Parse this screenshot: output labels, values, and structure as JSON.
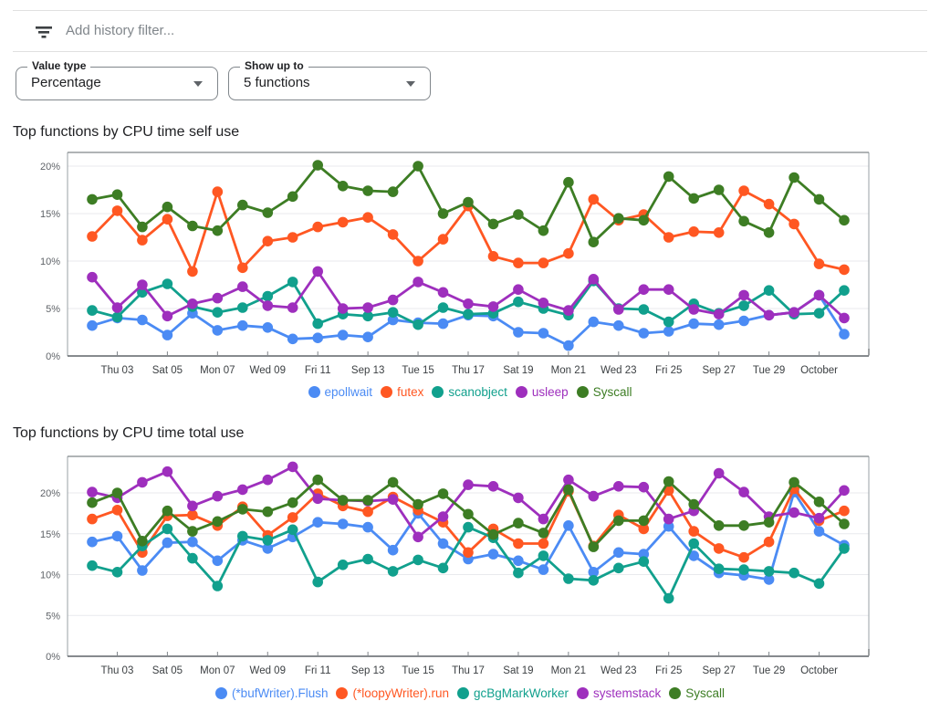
{
  "filter_bar": {
    "placeholder": "Add history filter...",
    "icon": "filter-list"
  },
  "controls": [
    {
      "label": "Value type",
      "value": "Percentage"
    },
    {
      "label": "Show up to",
      "value": "5 functions"
    }
  ],
  "axis": {
    "y_tick_labels": [
      "0%",
      "5%",
      "10%",
      "15%",
      "20%"
    ],
    "x_labels": [
      "Thu 03",
      "Sat 05",
      "Mon 07",
      "Wed 09",
      "Fri 11",
      "Sep 13",
      "Tue 15",
      "Thu 17",
      "Sat 19",
      "Mon 21",
      "Wed 23",
      "Fri 25",
      "Sep 27",
      "Tue 29",
      "October"
    ]
  },
  "chart_data": [
    {
      "type": "line",
      "title": "Top functions by CPU time self use",
      "xlabel": "",
      "ylabel": "CPU time self use (%)",
      "ylim": [
        0,
        21.5
      ],
      "y_ticks": [
        0,
        5,
        10,
        15,
        20
      ],
      "grid": true,
      "legend_position": "bottom",
      "x_labels": [
        "Thu 03",
        "Sat 05",
        "Mon 07",
        "Wed 09",
        "Fri 11",
        "Sep 13",
        "Tue 15",
        "Thu 17",
        "Sat 19",
        "Mon 21",
        "Wed 23",
        "Fri 25",
        "Sep 27",
        "Tue 29",
        "October"
      ],
      "series": [
        {
          "name": "epollwait",
          "color": "#4b8bf4",
          "values": [
            3.2,
            4.0,
            3.8,
            2.2,
            4.5,
            2.7,
            3.2,
            3.0,
            1.8,
            1.9,
            2.2,
            2.0,
            3.8,
            3.5,
            3.4,
            4.3,
            4.2,
            2.5,
            2.4,
            1.1,
            3.6,
            3.2,
            2.4,
            2.6,
            3.4,
            3.3,
            3.7,
            4.3,
            4.6,
            6.4,
            2.3
          ]
        },
        {
          "name": "futex",
          "color": "#ff5722",
          "values": [
            12.6,
            15.3,
            12.2,
            14.4,
            8.9,
            17.3,
            9.3,
            12.1,
            12.5,
            13.6,
            14.1,
            14.6,
            12.8,
            10.0,
            12.3,
            15.8,
            10.5,
            9.8,
            9.8,
            10.8,
            16.5,
            14.3,
            14.9,
            12.5,
            13.1,
            13.0,
            17.4,
            16.0,
            13.9,
            9.7,
            9.1
          ]
        },
        {
          "name": "scanobject",
          "color": "#11a08d",
          "values": [
            4.8,
            4.1,
            6.7,
            7.6,
            5.2,
            4.6,
            5.1,
            6.3,
            7.8,
            3.4,
            4.4,
            4.2,
            4.6,
            3.3,
            5.1,
            4.4,
            4.5,
            5.7,
            5.0,
            4.3,
            7.9,
            5.0,
            4.9,
            3.6,
            5.5,
            4.5,
            5.3,
            6.9,
            4.4,
            4.5,
            6.9
          ]
        },
        {
          "name": "usleep",
          "color": "#9e2fbd",
          "values": [
            8.3,
            5.1,
            7.5,
            4.2,
            5.5,
            6.1,
            7.3,
            5.3,
            5.1,
            8.9,
            5.0,
            5.1,
            5.9,
            7.8,
            6.7,
            5.5,
            5.2,
            7.0,
            5.6,
            4.8,
            8.1,
            4.9,
            7.0,
            7.0,
            4.9,
            4.4,
            6.4,
            4.3,
            4.6,
            6.4,
            4.0
          ]
        },
        {
          "name": "Syscall",
          "color": "#3d7d24",
          "values": [
            16.5,
            17.0,
            13.6,
            15.7,
            13.7,
            13.2,
            15.9,
            15.1,
            16.8,
            20.1,
            17.9,
            17.4,
            17.3,
            20.0,
            15.0,
            16.2,
            13.9,
            14.9,
            13.2,
            18.3,
            12.0,
            14.5,
            14.3,
            18.9,
            16.6,
            17.5,
            14.2,
            13.0,
            18.8,
            16.5,
            14.3
          ]
        }
      ]
    },
    {
      "type": "line",
      "title": "Top functions by CPU time total use",
      "xlabel": "",
      "ylabel": "CPU time total use (%)",
      "ylim": [
        0,
        24.5
      ],
      "y_ticks": [
        0,
        5,
        10,
        15,
        20
      ],
      "grid": true,
      "legend_position": "bottom",
      "x_labels": [
        "Thu 03",
        "Sat 05",
        "Mon 07",
        "Wed 09",
        "Fri 11",
        "Sep 13",
        "Tue 15",
        "Thu 17",
        "Sat 19",
        "Mon 21",
        "Wed 23",
        "Fri 25",
        "Sep 27",
        "Tue 29",
        "October"
      ],
      "series": [
        {
          "name": "(*bufWriter).Flush",
          "color": "#4b8bf4",
          "values": [
            14.0,
            14.7,
            10.5,
            13.9,
            14.0,
            11.7,
            14.2,
            13.2,
            14.6,
            16.4,
            16.2,
            15.8,
            13.0,
            17.5,
            13.8,
            11.9,
            12.5,
            11.7,
            10.6,
            16.0,
            10.3,
            12.7,
            12.5,
            15.9,
            12.3,
            10.2,
            9.9,
            9.4,
            20.1,
            15.3,
            13.6
          ]
        },
        {
          "name": "(*loopyWriter).run",
          "color": "#ff5722",
          "values": [
            16.8,
            17.9,
            12.7,
            17.2,
            17.3,
            16.0,
            18.3,
            14.8,
            17.0,
            19.9,
            18.4,
            17.7,
            19.5,
            17.9,
            16.4,
            12.7,
            15.6,
            13.8,
            13.8,
            20.2,
            13.5,
            17.3,
            15.6,
            20.3,
            15.3,
            13.2,
            12.1,
            14.0,
            20.5,
            16.6,
            17.8
          ]
        },
        {
          "name": "gcBgMarkWorker",
          "color": "#11a08d",
          "values": [
            11.1,
            10.3,
            13.5,
            15.6,
            12.0,
            8.6,
            14.7,
            14.2,
            15.5,
            9.1,
            11.2,
            11.9,
            10.4,
            11.8,
            10.8,
            15.8,
            14.5,
            10.2,
            12.3,
            9.5,
            9.3,
            10.8,
            11.6,
            7.1,
            13.8,
            10.7,
            10.6,
            10.4,
            10.2,
            8.9,
            13.2
          ]
        },
        {
          "name": "systemstack",
          "color": "#9e2fbd",
          "values": [
            20.1,
            19.4,
            21.3,
            22.6,
            18.4,
            19.6,
            20.4,
            21.6,
            23.2,
            19.3,
            19.1,
            19.0,
            19.2,
            14.6,
            17.1,
            21.0,
            20.8,
            19.4,
            16.8,
            21.6,
            19.6,
            20.8,
            20.7,
            16.8,
            17.8,
            22.4,
            20.1,
            17.1,
            17.6,
            16.9,
            20.3
          ]
        },
        {
          "name": "Syscall",
          "color": "#3d7d24",
          "values": [
            18.8,
            20.0,
            14.1,
            17.8,
            15.3,
            16.5,
            18.0,
            17.7,
            18.8,
            21.6,
            19.1,
            19.1,
            21.3,
            18.6,
            19.9,
            17.4,
            14.9,
            16.3,
            15.1,
            20.4,
            13.4,
            16.6,
            16.6,
            21.4,
            18.6,
            16.0,
            16.0,
            16.4,
            21.3,
            18.9,
            16.2
          ]
        }
      ]
    }
  ]
}
